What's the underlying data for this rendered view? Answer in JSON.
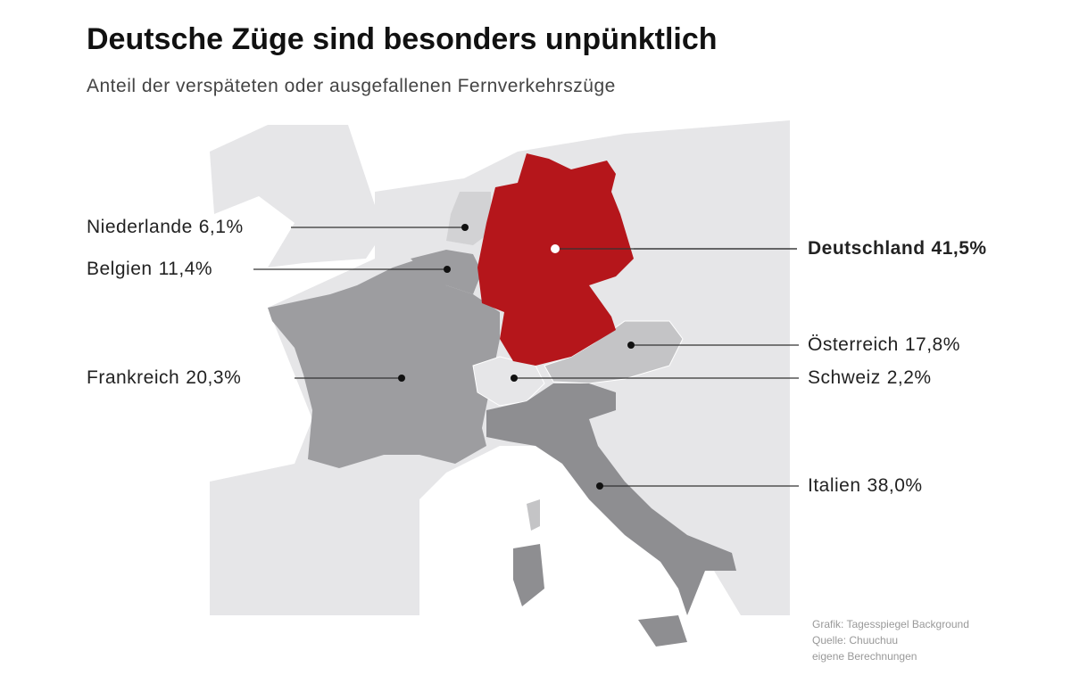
{
  "title": "Deutsche Züge sind besonders unpünktlich",
  "subtitle": "Anteil der verspäteten oder ausgefallenen Fernverkehrszüge",
  "countries": [
    {
      "name": "Niederlande",
      "value": "6,1%"
    },
    {
      "name": "Belgien",
      "value": "11,4%"
    },
    {
      "name": "Frankreich",
      "value": "20,3%"
    },
    {
      "name": "Deutschland",
      "value": "41,5%"
    },
    {
      "name": "Österreich",
      "value": "17,8%"
    },
    {
      "name": "Schweiz",
      "value": "2,2%"
    },
    {
      "name": "Italien",
      "value": "38,0%"
    }
  ],
  "source": [
    "Grafik: Tagesspiegel Background",
    "Quelle: Chuuchuu",
    "eigene Berechnungen"
  ]
}
